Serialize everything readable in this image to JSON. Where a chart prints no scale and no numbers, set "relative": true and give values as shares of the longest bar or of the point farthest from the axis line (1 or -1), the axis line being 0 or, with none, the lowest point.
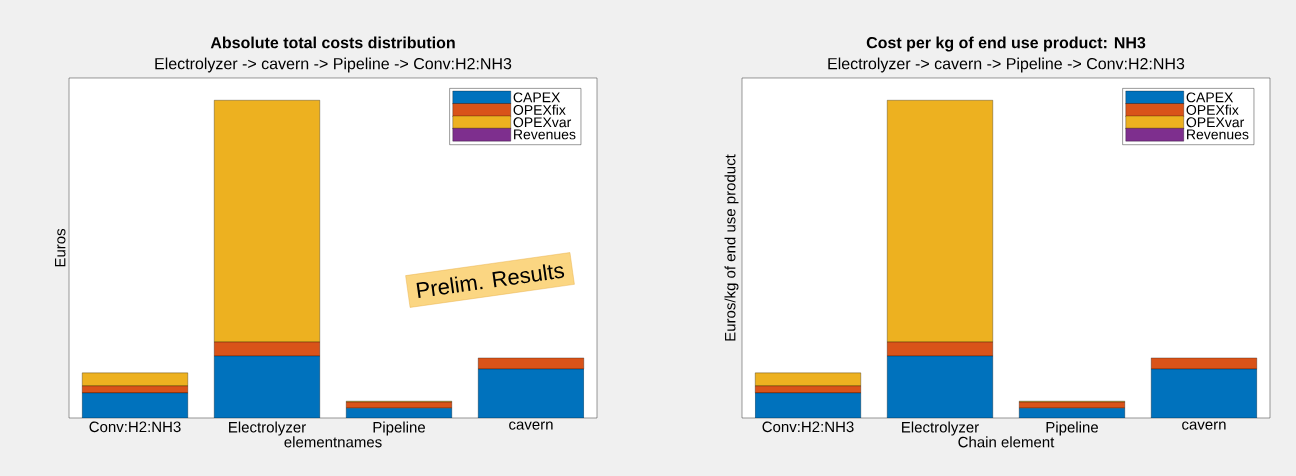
{
  "chart_data": [
    {
      "type": "bar",
      "stacked": true,
      "relative": true,
      "title": "Absolute total costs distribution",
      "subtitle": "Electrolyzer -> cavern -> Pipeline ->  Conv:H2:NH3",
      "xlabel": "elementnames",
      "ylabel": "Euros",
      "legend": "top right",
      "categories": [
        "Conv:H2:NH3",
        "Electrolyzer",
        "Pipeline",
        "cavern"
      ],
      "series": [
        {
          "name": "CAPEX",
          "color": "#0072bd",
          "values": [
            0.079,
            0.195,
            0.031,
            0.154
          ]
        },
        {
          "name": "OPEXfix",
          "color": "#d95319",
          "values": [
            0.022,
            0.044,
            0.019,
            0.035
          ]
        },
        {
          "name": "OPEXvar",
          "color": "#edb120",
          "values": [
            0.041,
            0.761,
            0.003,
            0
          ]
        },
        {
          "name": "Revenues",
          "color": "#7e2f8e",
          "values": [
            0,
            0,
            0,
            0
          ]
        }
      ],
      "annotations": [
        "Prelim. Results"
      ]
    },
    {
      "type": "bar",
      "stacked": true,
      "relative": true,
      "title": "Cost per kg of end use product: NH3",
      "subtitle": "Electrolyzer -> cavern -> Pipeline ->  Conv:H2:NH3",
      "xlabel": "Chain element",
      "ylabel": "Euros/kg of end use product",
      "legend": "top right",
      "categories": [
        "Conv:H2:NH3",
        "Electrolyzer",
        "Pipeline",
        "cavern"
      ],
      "series": [
        {
          "name": "CAPEX",
          "color": "#0072bd",
          "values": [
            0.079,
            0.195,
            0.031,
            0.154
          ]
        },
        {
          "name": "OPEXfix",
          "color": "#d95319",
          "values": [
            0.022,
            0.044,
            0.019,
            0.035
          ]
        },
        {
          "name": "OPEXvar",
          "color": "#edb120",
          "values": [
            0.041,
            0.761,
            0.003,
            0
          ]
        },
        {
          "name": "Revenues",
          "color": "#7e2f8e",
          "values": [
            0,
            0,
            0,
            0
          ]
        }
      ]
    }
  ]
}
